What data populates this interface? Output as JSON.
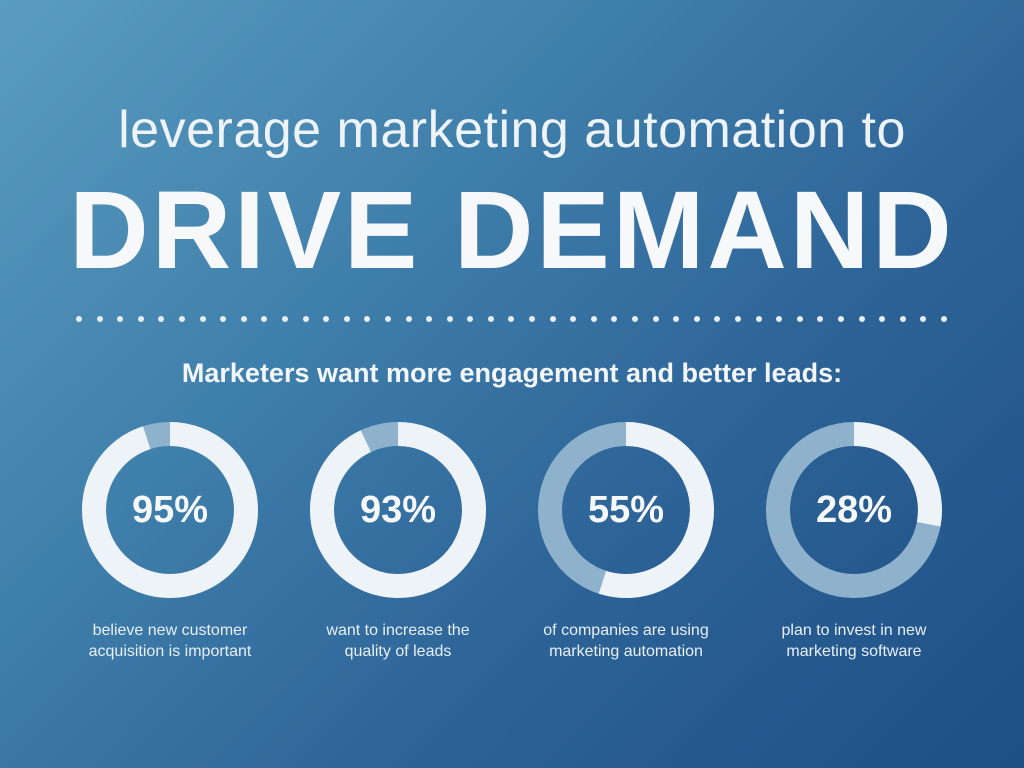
{
  "header": {
    "subtitle": "leverage marketing automation to",
    "title": "DRIVE DEMAND"
  },
  "tagline": "Marketers want more engagement and better leads:",
  "chart_data": {
    "type": "donut",
    "series": [
      {
        "value": 95,
        "label": "95%",
        "caption": [
          "believe new customer",
          "acquisition is important"
        ]
      },
      {
        "value": 93,
        "label": "93%",
        "caption": [
          "want to increase the",
          "quality of leads"
        ]
      },
      {
        "value": 55,
        "label": "55%",
        "caption": [
          "of companies are using",
          "marketing automation"
        ]
      },
      {
        "value": 28,
        "label": "28%",
        "caption": [
          "plan to invest in new",
          "marketing software"
        ]
      }
    ]
  },
  "colors": {
    "filled": "#eef3f7",
    "track": "#8fb2cc"
  }
}
